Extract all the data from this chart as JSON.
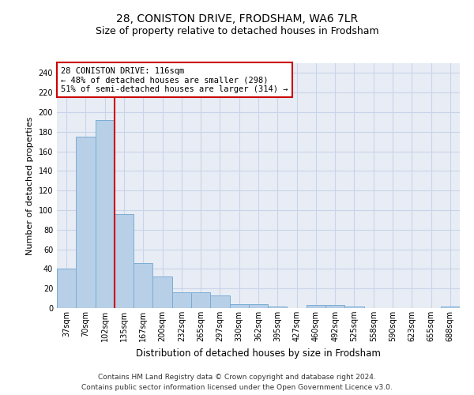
{
  "title": "28, CONISTON DRIVE, FRODSHAM, WA6 7LR",
  "subtitle": "Size of property relative to detached houses in Frodsham",
  "xlabel": "Distribution of detached houses by size in Frodsham",
  "ylabel": "Number of detached properties",
  "categories": [
    "37sqm",
    "70sqm",
    "102sqm",
    "135sqm",
    "167sqm",
    "200sqm",
    "232sqm",
    "265sqm",
    "297sqm",
    "330sqm",
    "362sqm",
    "395sqm",
    "427sqm",
    "460sqm",
    "492sqm",
    "525sqm",
    "558sqm",
    "590sqm",
    "623sqm",
    "655sqm",
    "688sqm"
  ],
  "values": [
    40,
    175,
    192,
    96,
    46,
    32,
    16,
    16,
    13,
    4,
    4,
    2,
    0,
    3,
    3,
    2,
    0,
    0,
    0,
    0,
    2
  ],
  "bar_color": "#b8cfe8",
  "bar_edge_color": "#7aadd4",
  "bar_linewidth": 0.7,
  "vline_x": 2.5,
  "vline_color": "#cc0000",
  "vline_linewidth": 1.5,
  "annotation_line1": "28 CONISTON DRIVE: 116sqm",
  "annotation_line2": "← 48% of detached houses are smaller (298)",
  "annotation_line3": "51% of semi-detached houses are larger (314) →",
  "annotation_box_color": "#ffffff",
  "annotation_box_edge": "#cc0000",
  "annotation_fontsize": 7.5,
  "footer_line1": "Contains HM Land Registry data © Crown copyright and database right 2024.",
  "footer_line2": "Contains public sector information licensed under the Open Government Licence v3.0.",
  "ylim": [
    0,
    250
  ],
  "yticks": [
    0,
    20,
    40,
    60,
    80,
    100,
    120,
    140,
    160,
    180,
    200,
    220,
    240
  ],
  "bg_color": "#ffffff",
  "plot_bg_color": "#e8edf5",
  "grid_color": "#c8d4e8",
  "title_fontsize": 10,
  "subtitle_fontsize": 9,
  "ylabel_fontsize": 8,
  "xlabel_fontsize": 8.5,
  "tick_fontsize": 7,
  "footer_fontsize": 6.5
}
